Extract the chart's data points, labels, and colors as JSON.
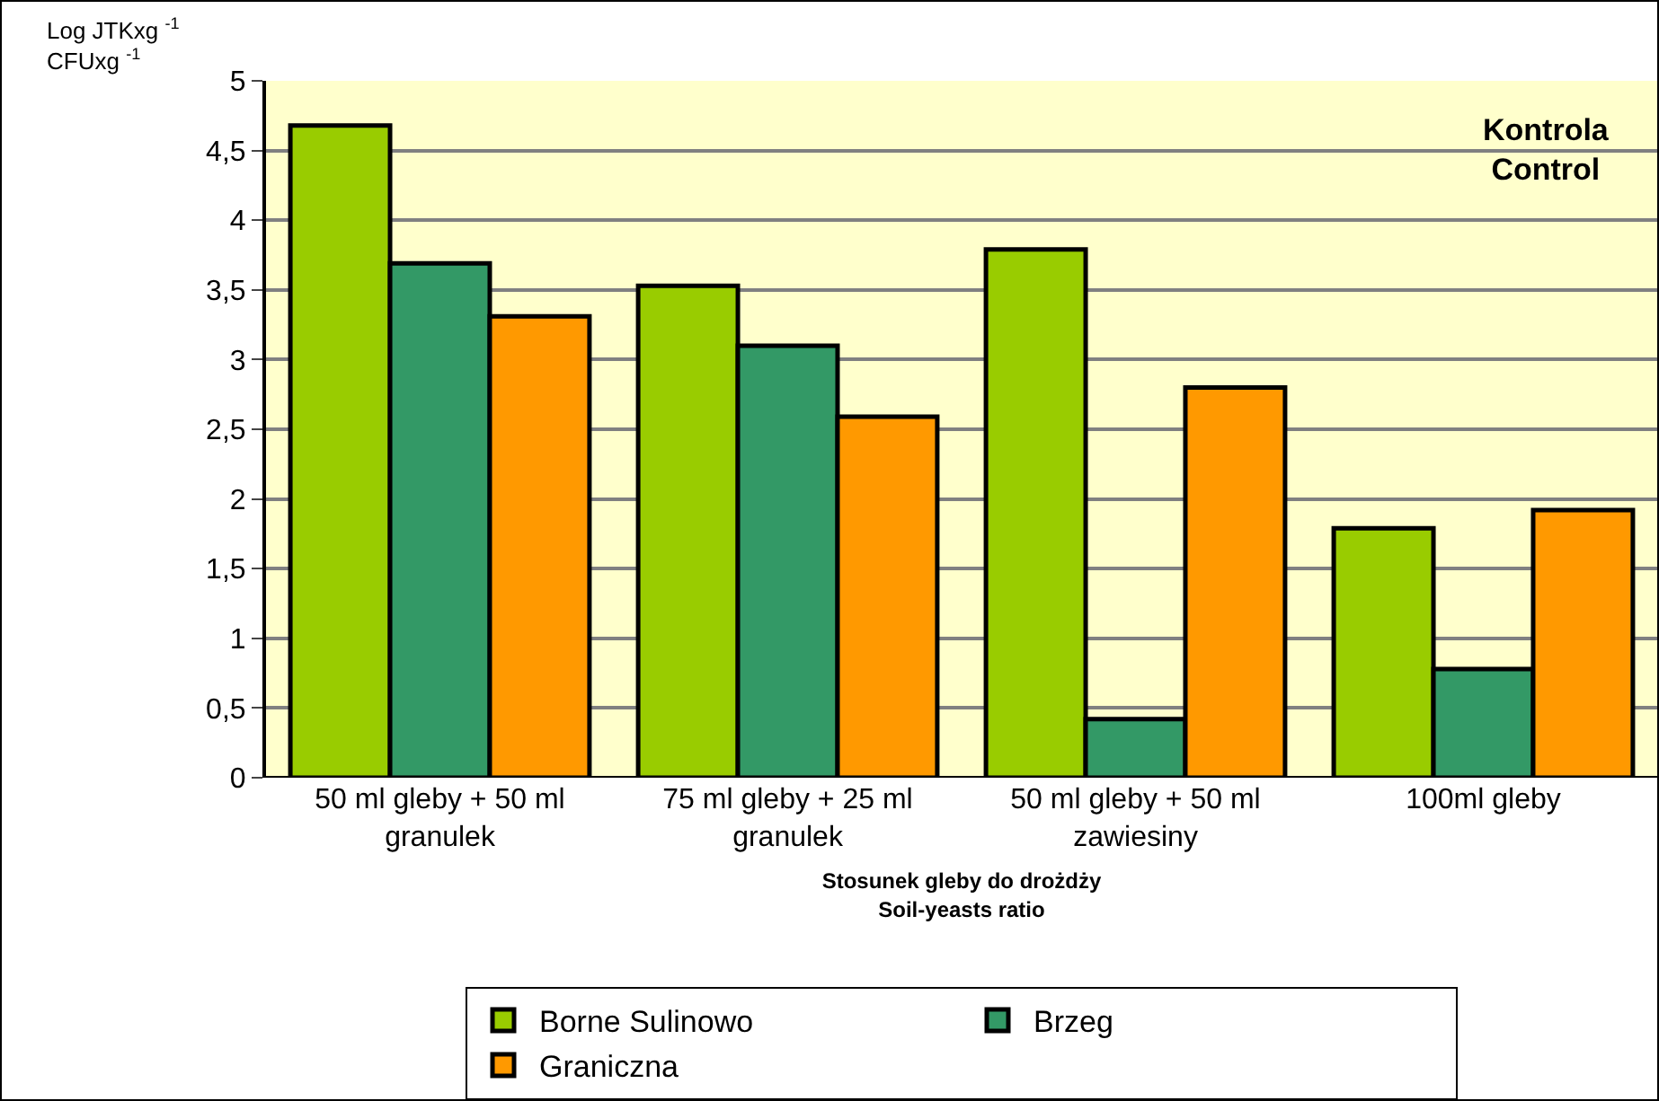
{
  "chart_data": {
    "type": "bar",
    "categories": [
      "50 ml gleby + 50 ml granulek",
      "75 ml gleby + 25 ml granulek",
      "50 ml gleby + 50 ml zawiesiny",
      "100ml gleby"
    ],
    "series": [
      {
        "name": "Borne Sulinowo",
        "color": "#99cc00",
        "values": [
          4.68,
          3.53,
          3.79,
          1.79
        ]
      },
      {
        "name": "Brzeg",
        "color": "#339966",
        "values": [
          3.69,
          3.1,
          0.42,
          0.78
        ]
      },
      {
        "name": "Graniczna",
        "color": "#ff9900",
        "values": [
          3.31,
          2.59,
          2.8,
          1.92
        ]
      }
    ],
    "ylabel": "Log JTKxg $^{-1}$\nCFUxg $^{-1}$",
    "xlabel": "Stosunek gleby do drożdży\nSoil-yeasts ratio",
    "annotations": [
      "Kontrola\nControl"
    ],
    "ylim": [
      0,
      5
    ],
    "yticks": [
      0,
      {
        "value": 0.5,
        "label": "0,5"
      },
      1,
      {
        "value": 1.5,
        "label": "1,5"
      },
      2,
      {
        "value": 2.5,
        "label": "2,5"
      },
      3,
      {
        "value": 3.5,
        "label": "3,5"
      },
      4,
      {
        "value": 4.5,
        "label": "4,5"
      },
      5
    ],
    "grid": "y",
    "legend": "bottom"
  }
}
